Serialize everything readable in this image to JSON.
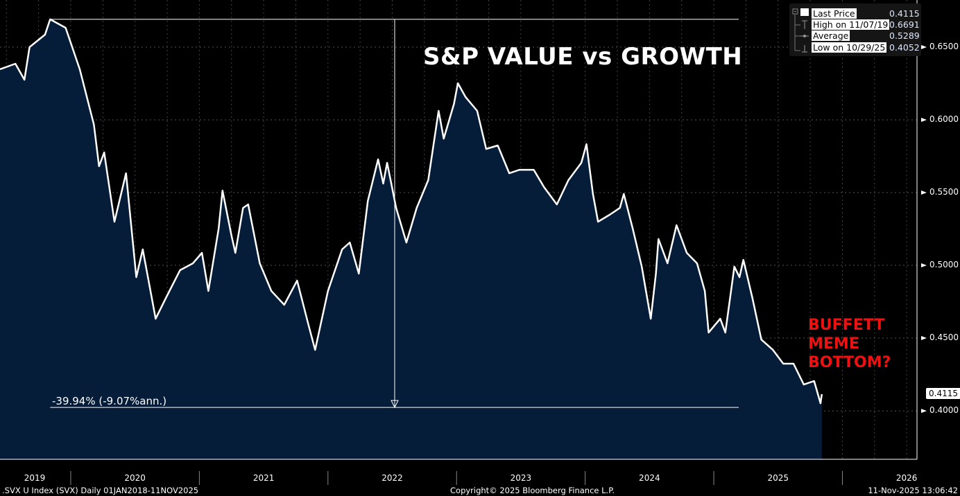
{
  "title": "S&P VALUE vs GROWTH",
  "annotation": [
    "BUFFETT",
    "MEME",
    "BOTTOM?"
  ],
  "change_label": "-39.94% (-9.07%ann.)",
  "legend": [
    {
      "label": "Last Price",
      "value": "0.4115"
    },
    {
      "label": "High on 11/07/19",
      "value": "0.6691"
    },
    {
      "label": "Average",
      "value": "0.5289"
    },
    {
      "label": "Low on 10/29/25",
      "value": "0.4052"
    }
  ],
  "last_price_tag": "0.4115",
  "footer": {
    "left": ".SVX U Index (SVX) Daily 01JAN2018-11NOV2025",
    "center": "Copyright© 2025 Bloomberg Finance L.P.",
    "right": "11-Nov-2025 13:06:42"
  },
  "colors": {
    "background": "#000000",
    "line": "#ffffff",
    "fill": "#061d3a",
    "annotation": "#ee1111"
  },
  "chart_data": {
    "type": "area",
    "title": "S&P VALUE vs GROWTH",
    "xlabel": "",
    "ylabel": "",
    "xlim": [
      2019.45,
      2026.58
    ],
    "ylim": [
      0.3667,
      0.6824
    ],
    "grid": true,
    "legend_position": "top-right",
    "y_ticks": [
      "0.4000",
      "0.4500",
      "0.5000",
      "0.5500",
      "0.6000",
      "0.6500"
    ],
    "y_tick_values": [
      0.4,
      0.45,
      0.5,
      0.55,
      0.6,
      0.65
    ],
    "x_ticks": [
      "2019",
      "2020",
      "2021",
      "2022",
      "2023",
      "2024",
      "2025",
      "2026"
    ],
    "x_tick_values": [
      2019.5,
      2020.5,
      2021.5,
      2022.5,
      2023.5,
      2024.5,
      2025.5,
      2026.5
    ],
    "year_boundaries": [
      2020,
      2021,
      2022,
      2023,
      2024,
      2025,
      2026
    ],
    "high": {
      "date": 2019.84,
      "value": 0.6691
    },
    "low": {
      "date": 2025.83,
      "value": 0.4052
    },
    "series": [
      {
        "name": "Last Price",
        "points": [
          [
            2019.45,
            0.6348
          ],
          [
            2019.57,
            0.6386
          ],
          [
            2019.64,
            0.6276
          ],
          [
            2019.68,
            0.65
          ],
          [
            2019.8,
            0.6586
          ],
          [
            2019.84,
            0.6691
          ],
          [
            2019.96,
            0.6633
          ],
          [
            2020.07,
            0.6348
          ],
          [
            2020.18,
            0.5967
          ],
          [
            2020.22,
            0.5681
          ],
          [
            2020.26,
            0.5776
          ],
          [
            2020.34,
            0.53
          ],
          [
            2020.43,
            0.5633
          ],
          [
            2020.51,
            0.4919
          ],
          [
            2020.56,
            0.511
          ],
          [
            2020.66,
            0.4633
          ],
          [
            2020.74,
            0.4776
          ],
          [
            2020.85,
            0.4967
          ],
          [
            2020.95,
            0.5014
          ],
          [
            2021.02,
            0.5086
          ],
          [
            2021.07,
            0.4824
          ],
          [
            2021.15,
            0.5252
          ],
          [
            2021.18,
            0.5514
          ],
          [
            2021.25,
            0.5205
          ],
          [
            2021.28,
            0.5086
          ],
          [
            2021.34,
            0.5395
          ],
          [
            2021.38,
            0.5419
          ],
          [
            2021.47,
            0.5014
          ],
          [
            2021.56,
            0.4824
          ],
          [
            2021.66,
            0.4729
          ],
          [
            2021.76,
            0.4895
          ],
          [
            2021.85,
            0.4586
          ],
          [
            2021.9,
            0.4419
          ],
          [
            2022.0,
            0.4824
          ],
          [
            2022.11,
            0.511
          ],
          [
            2022.17,
            0.5157
          ],
          [
            2022.24,
            0.4943
          ],
          [
            2022.31,
            0.5443
          ],
          [
            2022.39,
            0.5729
          ],
          [
            2022.43,
            0.5562
          ],
          [
            2022.46,
            0.5705
          ],
          [
            2022.53,
            0.5395
          ],
          [
            2022.61,
            0.5157
          ],
          [
            2022.69,
            0.5395
          ],
          [
            2022.78,
            0.5586
          ],
          [
            2022.86,
            0.6062
          ],
          [
            2022.9,
            0.5871
          ],
          [
            2022.98,
            0.611
          ],
          [
            2023.01,
            0.6252
          ],
          [
            2023.07,
            0.6157
          ],
          [
            2023.16,
            0.6062
          ],
          [
            2023.23,
            0.58
          ],
          [
            2023.32,
            0.5824
          ],
          [
            2023.41,
            0.5633
          ],
          [
            2023.49,
            0.5657
          ],
          [
            2023.6,
            0.5657
          ],
          [
            2023.68,
            0.5538
          ],
          [
            2023.78,
            0.5419
          ],
          [
            2023.87,
            0.5586
          ],
          [
            2023.97,
            0.5705
          ],
          [
            2024.01,
            0.5833
          ],
          [
            2024.06,
            0.5491
          ],
          [
            2024.1,
            0.53
          ],
          [
            2024.19,
            0.5348
          ],
          [
            2024.27,
            0.5395
          ],
          [
            2024.3,
            0.5491
          ],
          [
            2024.37,
            0.5252
          ],
          [
            2024.44,
            0.4991
          ],
          [
            2024.51,
            0.4633
          ],
          [
            2024.55,
            0.4943
          ],
          [
            2024.57,
            0.5181
          ],
          [
            2024.64,
            0.5014
          ],
          [
            2024.71,
            0.5276
          ],
          [
            2024.79,
            0.5086
          ],
          [
            2024.87,
            0.5014
          ],
          [
            2024.93,
            0.4824
          ],
          [
            2024.96,
            0.4538
          ],
          [
            2025.05,
            0.4633
          ],
          [
            2025.09,
            0.4538
          ],
          [
            2025.16,
            0.4991
          ],
          [
            2025.2,
            0.4919
          ],
          [
            2025.23,
            0.5038
          ],
          [
            2025.3,
            0.4776
          ],
          [
            2025.37,
            0.449
          ],
          [
            2025.46,
            0.4419
          ],
          [
            2025.54,
            0.4324
          ],
          [
            2025.62,
            0.4324
          ],
          [
            2025.7,
            0.4181
          ],
          [
            2025.78,
            0.4205
          ],
          [
            2025.83,
            0.4052
          ],
          [
            2025.84,
            0.4115
          ]
        ]
      }
    ]
  }
}
